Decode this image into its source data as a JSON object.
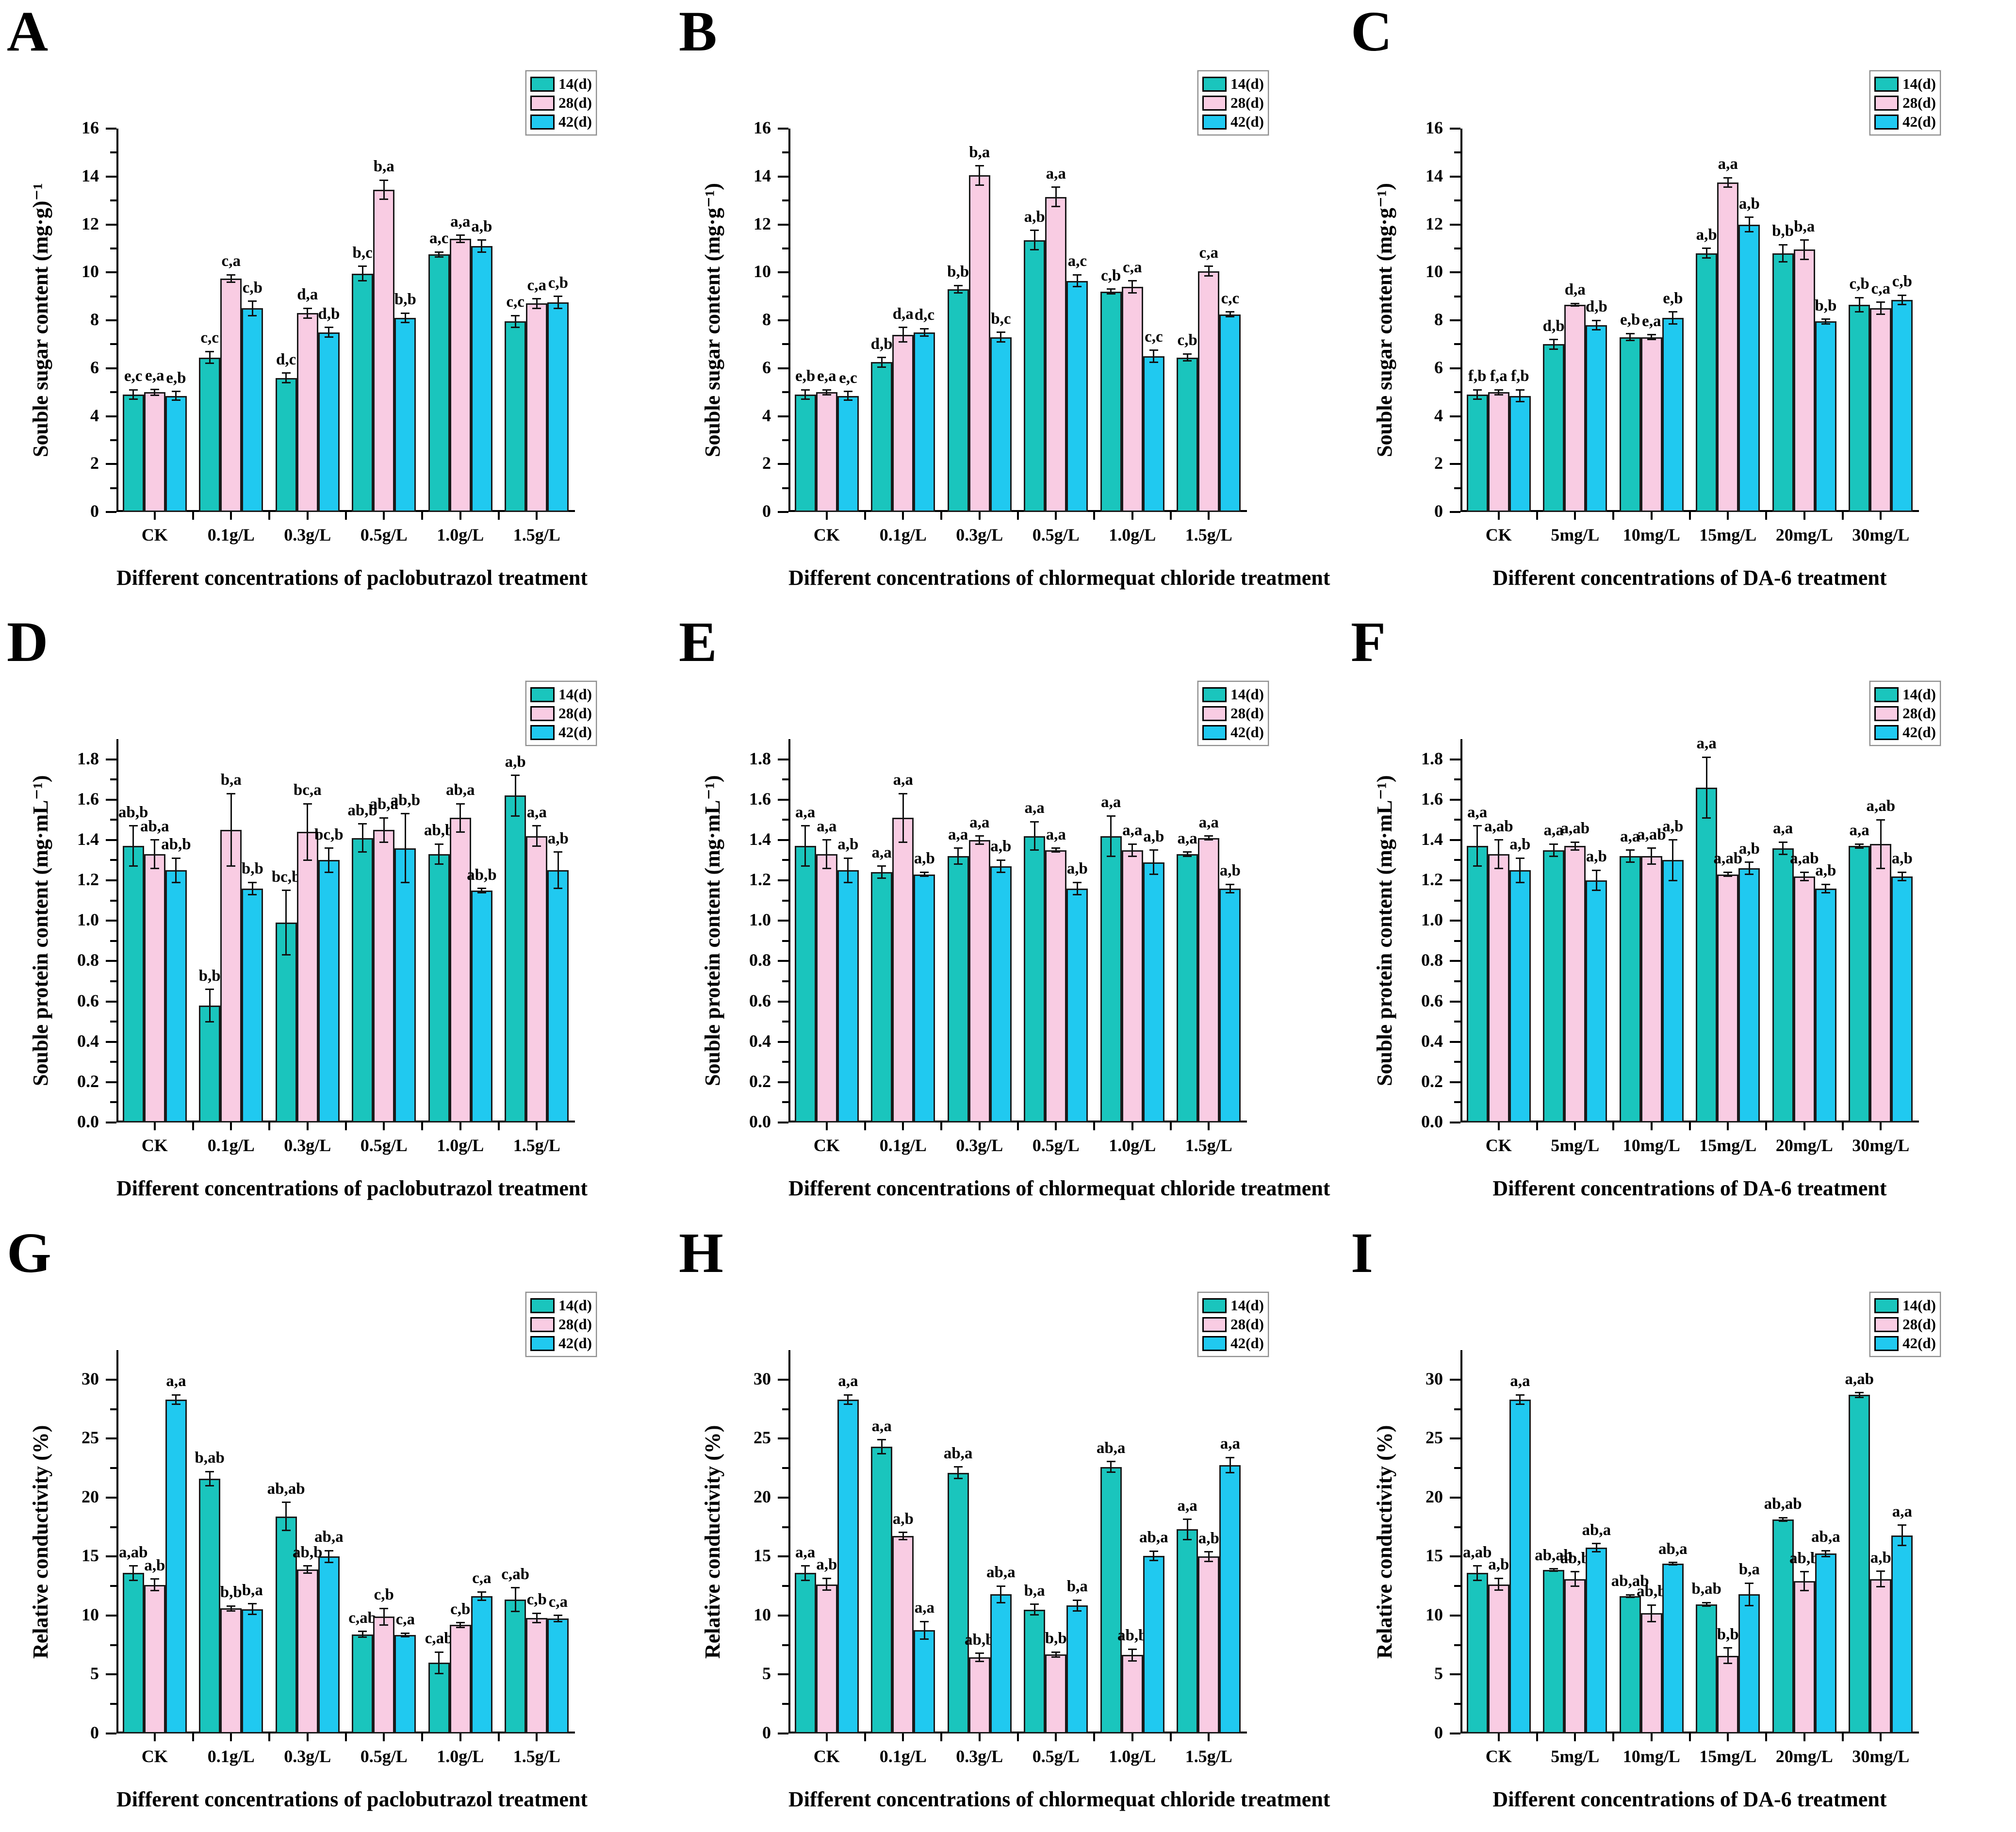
{
  "figure": {
    "series_names": [
      "14(d)",
      "28(d)",
      "42(d)"
    ],
    "series_colors": [
      "#1AC5BD",
      "#F9CCE3",
      "#20C9F0"
    ],
    "bar_border_color": "#1a1a1a",
    "axis_color": "#000000"
  },
  "chart_data": [
    {
      "type": "bar",
      "panel": "A",
      "ylabel": "Souble sugar content (mg·g)⁻¹",
      "xlabel": "Different concentrations of paclobutrazol treatment",
      "ylim": [
        0,
        16
      ],
      "ytick_max": 16,
      "ytick_step": 2,
      "ytick_decimals": 0,
      "grid": false,
      "legend_position": "top-right",
      "categories": [
        "CK",
        "0.1g/L",
        "0.3g/L",
        "0.5g/L",
        "1.0g/L",
        "1.5g/L"
      ],
      "series": [
        {
          "name": "14(d)",
          "values": [
            4.9,
            6.45,
            5.6,
            9.95,
            10.75,
            7.95
          ],
          "errors": [
            0.2,
            0.25,
            0.2,
            0.3,
            0.1,
            0.25
          ],
          "sig_labels": [
            "e,c",
            "c,c",
            "d,c",
            "b,c",
            "a,c",
            "c,c"
          ]
        },
        {
          "name": "28(d)",
          "values": [
            5.0,
            9.75,
            8.3,
            13.45,
            11.4,
            8.7
          ],
          "errors": [
            0.12,
            0.15,
            0.2,
            0.4,
            0.15,
            0.2
          ],
          "sig_labels": [
            "e,a",
            "c,a",
            "d,a",
            "b,a",
            "a,a",
            "c,a"
          ]
        },
        {
          "name": "42(d)",
          "values": [
            4.85,
            8.5,
            7.5,
            8.1,
            11.1,
            8.75
          ],
          "errors": [
            0.18,
            0.3,
            0.2,
            0.2,
            0.25,
            0.25
          ],
          "sig_labels": [
            "e,b",
            "c,b",
            "d,b",
            "b,b",
            "a,b",
            "c,b"
          ]
        }
      ]
    },
    {
      "type": "bar",
      "panel": "B",
      "ylabel": "Souble sugar content (mg·g⁻¹)",
      "xlabel": "Different concentrations of chlormequat chloride treatment",
      "ylim": [
        0,
        16
      ],
      "ytick_max": 16,
      "ytick_step": 2,
      "ytick_decimals": 0,
      "grid": false,
      "legend_position": "top-right",
      "categories": [
        "CK",
        "0.1g/L",
        "0.3g/L",
        "0.5g/L",
        "1.0g/L",
        "1.5g/L"
      ],
      "series": [
        {
          "name": "14(d)",
          "values": [
            4.9,
            6.25,
            9.3,
            11.35,
            9.2,
            6.45
          ],
          "errors": [
            0.2,
            0.2,
            0.15,
            0.4,
            0.1,
            0.15
          ],
          "sig_labels": [
            "e,b",
            "d,b",
            "b,b",
            "a,b",
            "c,b",
            "c,b"
          ]
        },
        {
          "name": "28(d)",
          "values": [
            5.0,
            7.4,
            14.05,
            13.15,
            9.4,
            10.05
          ],
          "errors": [
            0.1,
            0.3,
            0.4,
            0.4,
            0.25,
            0.2
          ],
          "sig_labels": [
            "e,a",
            "d,a",
            "b,a",
            "a,a",
            "c,a",
            "c,a"
          ]
        },
        {
          "name": "42(d)",
          "values": [
            4.85,
            7.5,
            7.3,
            9.65,
            6.5,
            8.25
          ],
          "errors": [
            0.18,
            0.15,
            0.2,
            0.25,
            0.25,
            0.1
          ],
          "sig_labels": [
            "e,c",
            "d,c",
            "b,c",
            "a,c",
            "c,c",
            "c,c"
          ]
        }
      ]
    },
    {
      "type": "bar",
      "panel": "C",
      "ylabel": "Souble sugar content (mg·g⁻¹)",
      "xlabel": "Different concentrations of DA-6 treatment",
      "ylim": [
        0,
        16
      ],
      "ytick_max": 16,
      "ytick_step": 2,
      "ytick_decimals": 0,
      "grid": false,
      "legend_position": "top-right",
      "categories": [
        "CK",
        "5mg/L",
        "10mg/L",
        "15mg/L",
        "20mg/L",
        "30mg/L"
      ],
      "series": [
        {
          "name": "14(d)",
          "values": [
            4.9,
            7.0,
            7.3,
            10.8,
            10.8,
            8.65
          ],
          "errors": [
            0.2,
            0.2,
            0.15,
            0.2,
            0.35,
            0.3
          ],
          "sig_labels": [
            "f,b",
            "d,b",
            "e,b",
            "a,b",
            "b,b",
            "c,b"
          ]
        },
        {
          "name": "28(d)",
          "values": [
            5.0,
            8.65,
            7.3,
            13.75,
            10.95,
            8.5
          ],
          "errors": [
            0.1,
            0.05,
            0.1,
            0.2,
            0.4,
            0.25
          ],
          "sig_labels": [
            "f,a",
            "d,a",
            "e,a",
            "a,a",
            "b,a",
            "c,a"
          ]
        },
        {
          "name": "42(d)",
          "values": [
            4.85,
            7.8,
            8.1,
            12.0,
            7.95,
            8.85
          ],
          "errors": [
            0.25,
            0.2,
            0.25,
            0.3,
            0.1,
            0.2
          ],
          "sig_labels": [
            "f,b",
            "d,b",
            "e,b",
            "a,b",
            "b,b",
            "c,b"
          ]
        }
      ]
    },
    {
      "type": "bar",
      "panel": "D",
      "ylabel": "Souble protein content (mg·mL⁻¹)",
      "xlabel": "Different concentrations of paclobutrazol treatment",
      "ylim": [
        0,
        1.9
      ],
      "ytick_max": 1.8,
      "ytick_step": 0.2,
      "ytick_decimals": 1,
      "grid": false,
      "legend_position": "top-right",
      "categories": [
        "CK",
        "0.1g/L",
        "0.3g/L",
        "0.5g/L",
        "1.0g/L",
        "1.5g/L"
      ],
      "series": [
        {
          "name": "14(d)",
          "values": [
            1.37,
            0.58,
            0.99,
            1.41,
            1.33,
            1.62
          ],
          "errors": [
            0.1,
            0.08,
            0.16,
            0.07,
            0.05,
            0.1
          ],
          "sig_labels": [
            "ab,b",
            "b,b",
            "bc,b",
            "ab,b",
            "ab,b",
            "a,b"
          ]
        },
        {
          "name": "28(d)",
          "values": [
            1.33,
            1.45,
            1.44,
            1.45,
            1.51,
            1.42
          ],
          "errors": [
            0.07,
            0.18,
            0.14,
            0.06,
            0.07,
            0.05
          ],
          "sig_labels": [
            "ab,a",
            "b,a",
            "bc,a",
            "ab,a",
            "ab,a",
            "a,a"
          ]
        },
        {
          "name": "42(d)",
          "values": [
            1.25,
            1.16,
            1.3,
            1.36,
            1.15,
            1.25
          ],
          "errors": [
            0.06,
            0.03,
            0.06,
            0.17,
            0.01,
            0.09
          ],
          "sig_labels": [
            "ab,b",
            "b,b",
            "bc,b",
            "ab,b",
            "ab,b",
            "a,b"
          ]
        }
      ]
    },
    {
      "type": "bar",
      "panel": "E",
      "ylabel": "Souble protein content (mg·mL⁻¹)",
      "xlabel": "Different concentrations of chlormequat chloride treatment",
      "ylim": [
        0,
        1.9
      ],
      "ytick_max": 1.8,
      "ytick_step": 0.2,
      "ytick_decimals": 1,
      "grid": false,
      "legend_position": "top-right",
      "categories": [
        "CK",
        "0.1g/L",
        "0.3g/L",
        "0.5g/L",
        "1.0g/L",
        "1.5g/L"
      ],
      "series": [
        {
          "name": "14(d)",
          "values": [
            1.37,
            1.24,
            1.32,
            1.42,
            1.42,
            1.33
          ],
          "errors": [
            0.1,
            0.03,
            0.04,
            0.07,
            0.1,
            0.01
          ],
          "sig_labels": [
            "a,a",
            "a,a",
            "a,a",
            "a,a",
            "a,a",
            "a,a"
          ]
        },
        {
          "name": "28(d)",
          "values": [
            1.33,
            1.51,
            1.4,
            1.35,
            1.35,
            1.41
          ],
          "errors": [
            0.07,
            0.12,
            0.02,
            0.01,
            0.03,
            0.01
          ],
          "sig_labels": [
            "a,a",
            "a,a",
            "a,a",
            "a,a",
            "a,a",
            "a,a"
          ]
        },
        {
          "name": "42(d)",
          "values": [
            1.25,
            1.23,
            1.27,
            1.16,
            1.29,
            1.16
          ],
          "errors": [
            0.06,
            0.01,
            0.03,
            0.03,
            0.06,
            0.02
          ],
          "sig_labels": [
            "a,b",
            "a,b",
            "a,b",
            "a,b",
            "a,b",
            "a,b"
          ]
        }
      ]
    },
    {
      "type": "bar",
      "panel": "F",
      "ylabel": "Souble protein content (mg·mL⁻¹)",
      "xlabel": "Different concentrations of DA-6 treatment",
      "ylim": [
        0,
        1.9
      ],
      "ytick_max": 1.8,
      "ytick_step": 0.2,
      "ytick_decimals": 1,
      "grid": false,
      "legend_position": "top-right",
      "categories": [
        "CK",
        "5mg/L",
        "10mg/L",
        "15mg/L",
        "20mg/L",
        "30mg/L"
      ],
      "series": [
        {
          "name": "14(d)",
          "values": [
            1.37,
            1.35,
            1.32,
            1.66,
            1.36,
            1.37
          ],
          "errors": [
            0.1,
            0.03,
            0.03,
            0.15,
            0.03,
            0.01
          ],
          "sig_labels": [
            "a,a",
            "a,a",
            "a,a",
            "a,a",
            "a,a",
            "a,a"
          ]
        },
        {
          "name": "28(d)",
          "values": [
            1.33,
            1.37,
            1.32,
            1.23,
            1.22,
            1.38
          ],
          "errors": [
            0.07,
            0.02,
            0.04,
            0.01,
            0.02,
            0.12
          ],
          "sig_labels": [
            "a,ab",
            "a,ab",
            "a,ab",
            "a,ab",
            "a,ab",
            "a,ab"
          ]
        },
        {
          "name": "42(d)",
          "values": [
            1.25,
            1.2,
            1.3,
            1.26,
            1.16,
            1.22
          ],
          "errors": [
            0.06,
            0.05,
            0.1,
            0.03,
            0.02,
            0.02
          ],
          "sig_labels": [
            "a,b",
            "a,b",
            "a,b",
            "a,b",
            "a,b",
            "a,b"
          ]
        }
      ]
    },
    {
      "type": "bar",
      "panel": "G",
      "ylabel": "Relative conductivity (%)",
      "xlabel": "Different concentrations of paclobutrazol treatment",
      "ylim": [
        0,
        32.5
      ],
      "ytick_max": 30,
      "ytick_step": 5,
      "ytick_decimals": 0,
      "grid": false,
      "legend_position": "top-right",
      "categories": [
        "CK",
        "0.1g/L",
        "0.3g/L",
        "0.5g/L",
        "1.0g/L",
        "1.5g/L"
      ],
      "series": [
        {
          "name": "14(d)",
          "values": [
            13.6,
            21.6,
            18.4,
            8.4,
            6.0,
            11.35
          ],
          "errors": [
            0.6,
            0.6,
            1.2,
            0.25,
            0.9,
            1.0
          ],
          "sig_labels": [
            "a,ab",
            "b,ab",
            "ab,ab",
            "c,ab",
            "c,ab",
            "c,ab"
          ]
        },
        {
          "name": "28(d)",
          "values": [
            12.6,
            10.6,
            13.9,
            9.9,
            9.2,
            9.8
          ],
          "errors": [
            0.5,
            0.2,
            0.3,
            0.7,
            0.2,
            0.4
          ],
          "sig_labels": [
            "a,b",
            "b,b",
            "ab,b",
            "c,b",
            "c,b",
            "c,b"
          ]
        },
        {
          "name": "42(d)",
          "values": [
            28.3,
            10.55,
            15.0,
            8.35,
            11.65,
            9.75
          ],
          "errors": [
            0.4,
            0.45,
            0.5,
            0.15,
            0.35,
            0.25
          ],
          "sig_labels": [
            "a,a",
            "b,a",
            "ab,a",
            "c,a",
            "c,a",
            "c,a"
          ]
        }
      ]
    },
    {
      "type": "bar",
      "panel": "H",
      "ylabel": "Relative conductivity (%)",
      "xlabel": "Different concentrations of chlormequat chloride treatment",
      "ylim": [
        0,
        32.5
      ],
      "ytick_max": 30,
      "ytick_step": 5,
      "ytick_decimals": 0,
      "grid": false,
      "legend_position": "top-right",
      "categories": [
        "CK",
        "0.1g/L",
        "0.3g/L",
        "0.5g/L",
        "1.0g/L",
        "1.5g/L"
      ],
      "series": [
        {
          "name": "14(d)",
          "values": [
            13.6,
            24.3,
            22.1,
            10.5,
            22.6,
            17.3
          ],
          "errors": [
            0.6,
            0.6,
            0.5,
            0.45,
            0.45,
            0.85
          ],
          "sig_labels": [
            "a,a",
            "a,a",
            "ab,a",
            "b,a",
            "ab,a",
            "a,a"
          ]
        },
        {
          "name": "28(d)",
          "values": [
            12.65,
            16.75,
            6.45,
            6.7,
            6.65,
            15.0
          ],
          "errors": [
            0.5,
            0.3,
            0.35,
            0.2,
            0.5,
            0.4
          ],
          "sig_labels": [
            "a,b",
            "a,b",
            "ab,b",
            "b,b",
            "ab,b",
            "a,b"
          ]
        },
        {
          "name": "42(d)",
          "values": [
            28.3,
            8.75,
            11.8,
            10.85,
            15.05,
            22.75
          ],
          "errors": [
            0.4,
            0.75,
            0.7,
            0.45,
            0.4,
            0.65
          ],
          "sig_labels": [
            "a,a",
            "a,a",
            "ab,a",
            "b,a",
            "ab,a",
            "a,a"
          ]
        }
      ]
    },
    {
      "type": "bar",
      "panel": "I",
      "ylabel": "Relative conductivity (%)",
      "xlabel": "Different concentrations of DA-6 treatment",
      "ylim": [
        0,
        32.5
      ],
      "ytick_max": 30,
      "ytick_step": 5,
      "ytick_decimals": 0,
      "grid": false,
      "legend_position": "top-right",
      "categories": [
        "CK",
        "5mg/L",
        "10mg/L",
        "15mg/L",
        "20mg/L",
        "30mg/L"
      ],
      "series": [
        {
          "name": "14(d)",
          "values": [
            13.6,
            13.85,
            11.65,
            10.95,
            18.15,
            28.7
          ],
          "errors": [
            0.6,
            0.1,
            0.1,
            0.15,
            0.15,
            0.2
          ],
          "sig_labels": [
            "a,ab",
            "ab,ab",
            "ab,ab",
            "b,ab",
            "ab,ab",
            "a,ab"
          ]
        },
        {
          "name": "28(d)",
          "values": [
            12.65,
            13.1,
            10.2,
            6.6,
            12.9,
            13.1
          ],
          "errors": [
            0.5,
            0.6,
            0.7,
            0.65,
            0.8,
            0.65
          ],
          "sig_labels": [
            "a,b",
            "ab,b",
            "ab,b",
            "b,b",
            "ab,b",
            "a,b"
          ]
        },
        {
          "name": "42(d)",
          "values": [
            28.3,
            15.75,
            14.4,
            11.8,
            15.25,
            16.8
          ],
          "errors": [
            0.4,
            0.35,
            0.1,
            0.95,
            0.25,
            0.85
          ],
          "sig_labels": [
            "a,a",
            "ab,a",
            "ab,a",
            "b,a",
            "ab,a",
            "a,a"
          ]
        }
      ]
    }
  ]
}
